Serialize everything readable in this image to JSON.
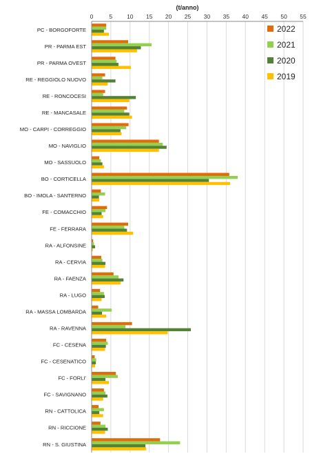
{
  "chart_data": {
    "type": "bar",
    "orientation": "horizontal",
    "unit_label": "(t/anno)",
    "xlim": [
      0,
      55
    ],
    "x_ticks": [
      0,
      5,
      10,
      15,
      20,
      25,
      30,
      35,
      40,
      45,
      50,
      55
    ],
    "grid": true,
    "legend_position": "top-right",
    "categories": [
      "PC - BORGOFORTE",
      "PR - PARMA EST",
      "PR - PARMA OVEST",
      "RE - REGGIOLO NUOVO",
      "RE - RONCOCESI",
      "RE - MANCASALE",
      "MO - CARPI - CORREGGIO",
      "MO - NAVIGLIO",
      "MO - SASSUOLO",
      "BO - CORTICELLA",
      "BO - IMOLA - SANTERNO",
      "FE - COMACCHIO",
      "FE - FERRARA",
      "RA - ALFONSINE",
      "RA - CERVIA",
      "RA - FAENZA",
      "RA - LUGO",
      "RA - MASSA LOMBARDA",
      "RA - RAVENNA",
      "FC - CESENA",
      "FC - CESENATICO",
      "FC - FORLI'",
      "FC - SAVIGNANO",
      "RN - CATTOLICA",
      "RN - RICCIONE",
      "RN - S. GIUSTINA"
    ],
    "series": [
      {
        "name": "2022",
        "color": "#E26B0A",
        "values": [
          3.8,
          9.5,
          6.2,
          3.5,
          3.5,
          9.2,
          9.6,
          17.5,
          2.0,
          35.8,
          2.4,
          4.0,
          9.5,
          0.4,
          2.5,
          5.7,
          2.2,
          1.7,
          10.5,
          3.8,
          0.8,
          6.3,
          3.2,
          1.8,
          2.3,
          17.8
        ]
      },
      {
        "name": "2021",
        "color": "#92D050",
        "values": [
          3.8,
          15.6,
          6.5,
          2.8,
          3.0,
          8.5,
          9.0,
          18.5,
          2.4,
          38.0,
          3.5,
          3.6,
          8.5,
          0.6,
          2.8,
          7.0,
          3.2,
          5.2,
          8.8,
          4.2,
          1.2,
          6.8,
          3.6,
          3.2,
          3.6,
          23.0
        ]
      },
      {
        "name": "2020",
        "color": "#548235",
        "values": [
          3.2,
          12.8,
          7.0,
          6.2,
          11.5,
          9.8,
          7.5,
          19.5,
          2.8,
          30.5,
          1.9,
          2.6,
          9.2,
          0.9,
          3.6,
          8.3,
          3.4,
          2.7,
          25.8,
          3.7,
          1.1,
          3.6,
          4.1,
          2.0,
          4.2,
          14.0
        ]
      },
      {
        "name": "2019",
        "color": "#FFC000",
        "values": [
          4.5,
          11.8,
          10.2,
          4.2,
          9.8,
          10.5,
          7.8,
          17.5,
          3.2,
          36.0,
          2.0,
          3.0,
          10.8,
          0.3,
          3.5,
          7.5,
          2.6,
          3.8,
          19.8,
          3.5,
          0.9,
          4.5,
          3.0,
          3.0,
          3.5,
          14.2
        ]
      }
    ]
  }
}
